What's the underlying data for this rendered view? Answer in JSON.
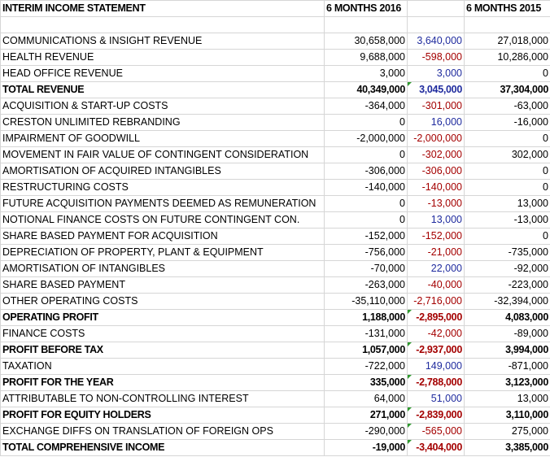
{
  "header": {
    "title": "INTERIM INCOME STATEMENT",
    "col_a": "6 MONTHS 2016",
    "col_b": "",
    "col_c": "6 MONTHS 2015"
  },
  "rows": [
    {
      "label": "",
      "a": "",
      "b": "",
      "c": "",
      "b_sign": "",
      "bold": false,
      "tri": false
    },
    {
      "label": "COMMUNICATIONS & INSIGHT REVENUE",
      "a": "30,658,000",
      "b": "3,640,000",
      "c": "27,018,000",
      "b_sign": "pos",
      "bold": false,
      "tri": false
    },
    {
      "label": "HEALTH REVENUE",
      "a": "9,688,000",
      "b": "-598,000",
      "c": "10,286,000",
      "b_sign": "neg",
      "bold": false,
      "tri": false
    },
    {
      "label": "HEAD OFFICE REVENUE",
      "a": "3,000",
      "b": "3,000",
      "c": "0",
      "b_sign": "pos",
      "bold": false,
      "tri": false
    },
    {
      "label": "TOTAL REVENUE",
      "a": "40,349,000",
      "b": "3,045,000",
      "c": "37,304,000",
      "b_sign": "pos",
      "bold": true,
      "tri": false,
      "tri_c": true
    },
    {
      "label": "ACQUISITION & START-UP COSTS",
      "a": "-364,000",
      "b": "-301,000",
      "c": "-63,000",
      "b_sign": "neg",
      "bold": false,
      "tri": false
    },
    {
      "label": "CRESTON UNLIMITED REBRANDING",
      "a": "0",
      "b": "16,000",
      "c": "-16,000",
      "b_sign": "pos",
      "bold": false,
      "tri": false
    },
    {
      "label": "IMPAIRMENT OF GOODWILL",
      "a": "-2,000,000",
      "b": "-2,000,000",
      "c": "0",
      "b_sign": "neg",
      "bold": false,
      "tri": false
    },
    {
      "label": "MOVEMENT IN FAIR VALUE OF CONTINGENT CONSIDERATION",
      "a": "0",
      "b": "-302,000",
      "c": "302,000",
      "b_sign": "neg",
      "bold": false,
      "tri": false
    },
    {
      "label": "AMORTISATION OF ACQUIRED INTANGIBLES",
      "a": "-306,000",
      "b": "-306,000",
      "c": "0",
      "b_sign": "neg",
      "bold": false,
      "tri": false
    },
    {
      "label": "RESTRUCTURING COSTS",
      "a": "-140,000",
      "b": "-140,000",
      "c": "0",
      "b_sign": "neg",
      "bold": false,
      "tri": false
    },
    {
      "label": "FUTURE ACQUISITION PAYMENTS DEEMED AS REMUNERATION",
      "a": "0",
      "b": "-13,000",
      "c": "13,000",
      "b_sign": "neg",
      "bold": false,
      "tri": false
    },
    {
      "label": "NOTIONAL FINANCE COSTS ON FUTURE CONTINGENT CON.",
      "a": "0",
      "b": "13,000",
      "c": "-13,000",
      "b_sign": "pos",
      "bold": false,
      "tri": false
    },
    {
      "label": "SHARE BASED PAYMENT FOR ACQUISITION",
      "a": "-152,000",
      "b": "-152,000",
      "c": "0",
      "b_sign": "neg",
      "bold": false,
      "tri": false
    },
    {
      "label": "DEPRECIATION OF PROPERTY, PLANT & EQUIPMENT",
      "a": "-756,000",
      "b": "-21,000",
      "c": "-735,000",
      "b_sign": "neg",
      "bold": false,
      "tri": false
    },
    {
      "label": "AMORTISATION OF INTANGIBLES",
      "a": "-70,000",
      "b": "22,000",
      "c": "-92,000",
      "b_sign": "pos",
      "bold": false,
      "tri": false
    },
    {
      "label": "SHARE BASED PAYMENT",
      "a": "-263,000",
      "b": "-40,000",
      "c": "-223,000",
      "b_sign": "neg",
      "bold": false,
      "tri": false
    },
    {
      "label": "OTHER OPERATING COSTS",
      "a": "-35,110,000",
      "b": "-2,716,000",
      "c": "-32,394,000",
      "b_sign": "neg",
      "bold": false,
      "tri": false
    },
    {
      "label": "OPERATING PROFIT",
      "a": "1,188,000",
      "b": "-2,895,000",
      "c": "4,083,000",
      "b_sign": "neg",
      "bold": true,
      "tri": true
    },
    {
      "label": "FINANCE COSTS",
      "a": "-131,000",
      "b": "-42,000",
      "c": "-89,000",
      "b_sign": "neg",
      "bold": false,
      "tri": false
    },
    {
      "label": "PROFIT BEFORE TAX",
      "a": "1,057,000",
      "b": "-2,937,000",
      "c": "3,994,000",
      "b_sign": "neg",
      "bold": true,
      "tri": true
    },
    {
      "label": "TAXATION",
      "a": "-722,000",
      "b": "149,000",
      "c": "-871,000",
      "b_sign": "pos",
      "bold": false,
      "tri": false
    },
    {
      "label": "PROFIT FOR THE YEAR",
      "a": "335,000",
      "b": "-2,788,000",
      "c": "3,123,000",
      "b_sign": "neg",
      "bold": true,
      "tri": true
    },
    {
      "label": "ATTRIBUTABLE TO NON-CONTROLLING INTEREST",
      "a": "64,000",
      "b": "51,000",
      "c": "13,000",
      "b_sign": "pos",
      "bold": false,
      "tri": false
    },
    {
      "label": "PROFIT FOR EQUITY HOLDERS",
      "a": "271,000",
      "b": "-2,839,000",
      "c": "3,110,000",
      "b_sign": "neg",
      "bold": true,
      "tri": true
    },
    {
      "label": "EXCHANGE DIFFS ON TRANSLATION OF FOREIGN OPS",
      "a": "-290,000",
      "b": "-565,000",
      "c": "275,000",
      "b_sign": "neg",
      "bold": false,
      "tri": true
    },
    {
      "label": "TOTAL COMPREHENSIVE INCOME",
      "a": "-19,000",
      "b": "-3,404,000",
      "c": "3,385,000",
      "b_sign": "neg",
      "bold": true,
      "tri": true
    }
  ],
  "colors": {
    "positive_variance": "#1f2b9e",
    "negative_variance": "#a40000",
    "comment_marker": "#2e9a2e",
    "gridline": "#d6d6d6"
  }
}
